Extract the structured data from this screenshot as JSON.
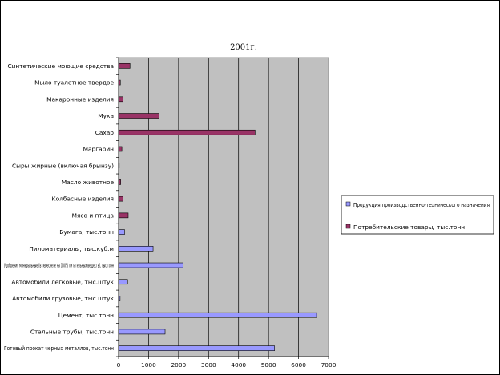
{
  "chart_data": {
    "type": "bar",
    "orientation": "horizontal",
    "title": "2001г.",
    "xlim": [
      0,
      7000
    ],
    "xticks": [
      0,
      1000,
      2000,
      3000,
      4000,
      5000,
      6000,
      7000
    ],
    "grid": true,
    "legend_position": "right",
    "categories": [
      "Синтетические моющие средства",
      "Мыло туалетное твердое",
      "Макаронные изделия",
      "Мука",
      "Сахар",
      "Маргарин",
      "Сыры жирные (включая брынзу)",
      "Масло животное",
      "Колбасные изделия",
      "Мясо и птица",
      "Бумага, тыс.тонн",
      "Пиломатериалы, тыс.куб.м",
      "Удобрения минеральные (в пересчете на 100% питательных веществ), тыс.тонн",
      "Автомобили легковые, тыс.штук",
      "Автомобили грузовые, тыс.штук",
      "Цемент, тыс.тонн",
      "Стальные трубы, тыс.тонн",
      "Готовый прокат черных металлов, тыс.тонн"
    ],
    "series": [
      {
        "name": "Продукция производственно-технического назначения",
        "color": "#9999ff",
        "values": [
          null,
          null,
          null,
          null,
          null,
          null,
          null,
          null,
          null,
          null,
          200,
          1150,
          2150,
          300,
          50,
          6600,
          1550,
          5200
        ]
      },
      {
        "name": "Потребительские товары, тыс.тонн",
        "color": "#993366",
        "values": [
          380,
          60,
          150,
          1350,
          4550,
          110,
          10,
          70,
          150,
          320,
          null,
          null,
          null,
          null,
          null,
          null,
          null,
          null
        ]
      }
    ]
  }
}
